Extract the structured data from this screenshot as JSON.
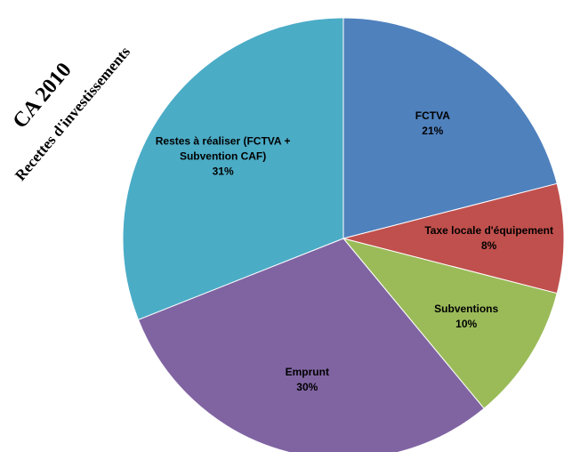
{
  "chart_data": {
    "type": "pie",
    "title": "CA 2010",
    "subtitle": "Recettes d'investissements",
    "categories": [
      "FCTVA",
      "Taxe locale d'équipement",
      "Subventions",
      "Emprunt",
      "Restes à réaliser (FCTVA + Subvention CAF)"
    ],
    "values": [
      21,
      8,
      10,
      30,
      31
    ],
    "value_labels": [
      "21%",
      "8%",
      "10%",
      "30%",
      "31%"
    ],
    "colors": [
      "#4f81bd",
      "#c0504d",
      "#9bbb59",
      "#8064a2",
      "#4bacc6"
    ]
  }
}
